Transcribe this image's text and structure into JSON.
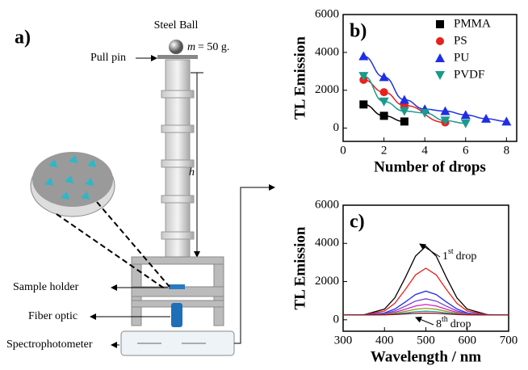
{
  "diagram": {
    "panel": "a)",
    "ball": "Steel Ball",
    "mass_symbol": "m",
    "mass": "= 50 g.",
    "pin": "Pull pin",
    "height": "h",
    "holder": "Sample holder",
    "fiber": "Fiber optic",
    "spectro": "Spectrophotometer"
  },
  "chart_data": [
    {
      "type": "scatter",
      "title": "b)",
      "y_label": "TL Emission",
      "x_label": "Number of drops",
      "xlim": [
        0,
        8.5
      ],
      "xticks": [
        0,
        2,
        4,
        6,
        8
      ],
      "ylim": [
        -700,
        6000
      ],
      "yticks": [
        0,
        2000,
        4000,
        6000
      ],
      "series": [
        {
          "name": "PMMA",
          "color": "#000000",
          "marker": "square",
          "x": [
            1,
            2,
            3
          ],
          "values": [
            1250,
            650,
            350
          ]
        },
        {
          "name": "PS",
          "color": "#e8211e",
          "marker": "circle",
          "x": [
            1,
            2,
            3,
            5
          ],
          "values": [
            2550,
            1900,
            1200,
            300
          ]
        },
        {
          "name": "PU",
          "color": "#1f2ee6",
          "marker": "triangle",
          "x": [
            1,
            2,
            3,
            4,
            5,
            6,
            7,
            8
          ],
          "values": [
            3800,
            2700,
            1500,
            1000,
            900,
            700,
            500,
            350
          ]
        },
        {
          "name": "PVDF",
          "color": "#1a9a8c",
          "marker": "triangle-down",
          "x": [
            1,
            2,
            3,
            4,
            5,
            6
          ],
          "values": [
            2750,
            1400,
            900,
            800,
            400,
            250
          ]
        }
      ]
    },
    {
      "type": "line",
      "title": "c)",
      "y_label": "TL Emission",
      "x_label": "Wavelength / nm",
      "xlim": [
        300,
        700
      ],
      "xticks": [
        300,
        400,
        500,
        600,
        700
      ],
      "ylim": [
        -600,
        6000
      ],
      "yticks": [
        0,
        2000,
        4000,
        6000
      ],
      "x": [
        300,
        350,
        400,
        425,
        450,
        475,
        500,
        525,
        550,
        575,
        600,
        650,
        700
      ],
      "series": [
        {
          "color": "#000000",
          "values": [
            250,
            264,
            556,
            1150,
            2194,
            3335,
            3850,
            3335,
            2194,
            1150,
            556,
            264,
            250
          ]
        },
        {
          "color": "#e8211e",
          "values": [
            250,
            260,
            458,
            862,
            1573,
            2350,
            2700,
            2350,
            1573,
            862,
            458,
            260,
            250
          ]
        },
        {
          "color": "#1f2ee6",
          "values": [
            250,
            255,
            356,
            563,
            925,
            1321,
            1500,
            1321,
            925,
            563,
            356,
            255,
            250
          ]
        },
        {
          "color": "#7a3fd0",
          "values": [
            250,
            253,
            322,
            463,
            709,
            978,
            1100,
            978,
            709,
            463,
            322,
            253,
            250
          ]
        },
        {
          "color": "#d020c0",
          "values": [
            250,
            252,
            297,
            388,
            547,
            721,
            800,
            721,
            547,
            388,
            297,
            252,
            250
          ]
        },
        {
          "color": "#9a9a20",
          "values": [
            250,
            251,
            280,
            338,
            439,
            550,
            600,
            550,
            439,
            338,
            280,
            251,
            250
          ]
        },
        {
          "color": "#1a9a8c",
          "values": [
            250,
            251,
            267,
            300,
            358,
            421,
            450,
            421,
            358,
            300,
            267,
            251,
            250
          ]
        },
        {
          "color": "#8a1020",
          "values": [
            250,
            250,
            259,
            275,
            304,
            336,
            350,
            336,
            304,
            275,
            259,
            250,
            250
          ]
        }
      ],
      "annotations": [
        {
          "num": "1",
          "sup": "st",
          "text": "drop"
        },
        {
          "num": "8",
          "sup": "th",
          "text": "drop"
        }
      ]
    }
  ]
}
